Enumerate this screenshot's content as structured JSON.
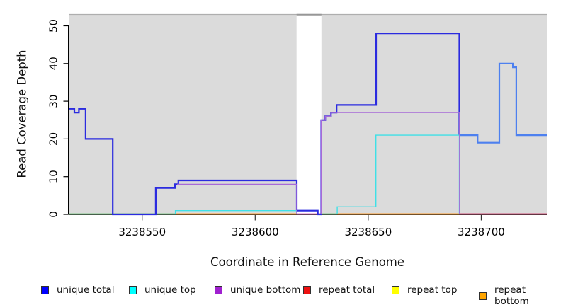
{
  "chart_data": {
    "type": "line",
    "subtype": "step-coverage-plot",
    "title": "",
    "xlabel": "Coordinate in Reference Genome",
    "ylabel": "Read Coverage Depth",
    "x_domain": [
      3238517.5,
      3238729
    ],
    "y_domain": [
      0,
      53
    ],
    "x_ticks": [
      3238550,
      3238600,
      3238650,
      3238700
    ],
    "y_ticks": [
      0,
      10,
      20,
      30,
      40,
      50
    ],
    "grid": false,
    "plot_bg_color": "#dbdbdb",
    "masked_region": {
      "x0": 3238618.3,
      "x1": 3238629.3,
      "color": "#ffffff"
    },
    "series": [
      {
        "name": "unique total",
        "color": "#2b2bdf",
        "width": 2.2,
        "points": [
          [
            3238517.5,
            28
          ],
          [
            3238520,
            27
          ],
          [
            3238522,
            28
          ],
          [
            3238525,
            20
          ],
          [
            3238537,
            0
          ],
          [
            3238556,
            7
          ],
          [
            3238564.5,
            8
          ],
          [
            3238566,
            9
          ],
          [
            3238618.4,
            1
          ],
          [
            3238627.7,
            0
          ],
          [
            3238629.2,
            25
          ],
          [
            3238631,
            26
          ],
          [
            3238633.5,
            27
          ],
          [
            3238636,
            29
          ],
          [
            3238653.5,
            48
          ],
          [
            3238690.3,
            21
          ]
        ]
      },
      {
        "name": "unique total right segment",
        "color": "#4d80ef",
        "width": 2.2,
        "points": [
          [
            3238690.3,
            21
          ],
          [
            3238698.4,
            19
          ],
          [
            3238708,
            40
          ],
          [
            3238714,
            39
          ],
          [
            3238715.5,
            21
          ],
          [
            3238729,
            21
          ]
        ]
      },
      {
        "name": "unique top",
        "color": "#3fe0e6",
        "width": 1.4,
        "points": [
          [
            3238564.7,
            0
          ],
          [
            3238564.7,
            1
          ],
          [
            3238618.4,
            0
          ]
        ]
      },
      {
        "name": "unique top right segment",
        "color": "#3fe0e6",
        "width": 1.4,
        "points": [
          [
            3238636.3,
            0
          ],
          [
            3238636.3,
            2
          ],
          [
            3238653.4,
            21
          ],
          [
            3238690.3,
            0
          ]
        ]
      },
      {
        "name": "unique bottom",
        "color": "#a76ad7",
        "width": 1.4,
        "points": [
          [
            3238565.5,
            8
          ],
          [
            3238618.4,
            0
          ]
        ]
      },
      {
        "name": "unique bottom right segment",
        "color": "#a76ad7",
        "width": 1.4,
        "points": [
          [
            3238629.2,
            0
          ],
          [
            3238629.2,
            25
          ],
          [
            3238631,
            26
          ],
          [
            3238633.5,
            27
          ],
          [
            3238690.4,
            0
          ]
        ]
      }
    ],
    "baseline_segments": [
      {
        "name": "unique-top-repeat-top-overlap-left",
        "color": "#84ca8e",
        "x0": 3238517.5,
        "x1": 3238565
      },
      {
        "name": "repeat-bottom-left",
        "color": "#ff9d2e",
        "x0": 3238565,
        "x1": 3238618.3
      },
      {
        "name": "masked-gap-baseline",
        "color": "#e47cc8",
        "x0": 3238618.3,
        "x1": 3238629.3
      },
      {
        "name": "unique-top-repeat-top-overlap-mid",
        "color": "#84ca8e",
        "x0": 3238629.3,
        "x1": 3238636.3
      },
      {
        "name": "repeat-bottom-right",
        "color": "#ff9d2e",
        "x0": 3238636.3,
        "x1": 3238690.3
      },
      {
        "name": "repeat-total-right",
        "color": "#d2527a",
        "x0": 3238690.3,
        "x1": 3238729
      }
    ]
  },
  "legend": {
    "items": [
      {
        "label": "unique total",
        "color": "#0000ff"
      },
      {
        "label": "unique top",
        "color": "#00ffff"
      },
      {
        "label": "unique bottom",
        "color": "#a020d0"
      },
      {
        "label": "repeat total",
        "color": "#ee1111"
      },
      {
        "label": "repeat top",
        "color": "#ffff00"
      },
      {
        "label": "repeat bottom",
        "color": "#ffa500"
      }
    ]
  }
}
